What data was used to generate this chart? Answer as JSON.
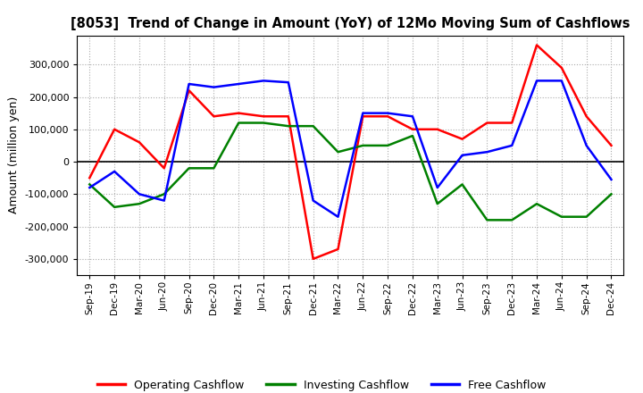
{
  "title": "[8053]  Trend of Change in Amount (YoY) of 12Mo Moving Sum of Cashflows",
  "ylabel": "Amount (million yen)",
  "ylim": [
    -350000,
    390000
  ],
  "yticks": [
    -300000,
    -200000,
    -100000,
    0,
    100000,
    200000,
    300000
  ],
  "legend_labels": [
    "Operating Cashflow",
    "Investing Cashflow",
    "Free Cashflow"
  ],
  "legend_colors": [
    "red",
    "green",
    "blue"
  ],
  "x_labels": [
    "Sep-19",
    "Dec-19",
    "Mar-20",
    "Jun-20",
    "Sep-20",
    "Dec-20",
    "Mar-21",
    "Jun-21",
    "Sep-21",
    "Dec-21",
    "Mar-22",
    "Jun-22",
    "Sep-22",
    "Dec-22",
    "Mar-23",
    "Jun-23",
    "Sep-23",
    "Dec-23",
    "Mar-24",
    "Jun-24",
    "Sep-24",
    "Dec-24"
  ],
  "operating": [
    -50000,
    100000,
    60000,
    -20000,
    220000,
    140000,
    150000,
    140000,
    140000,
    -300000,
    -270000,
    140000,
    140000,
    100000,
    100000,
    70000,
    120000,
    120000,
    360000,
    290000,
    140000,
    50000
  ],
  "investing": [
    -70000,
    -140000,
    -130000,
    -100000,
    -20000,
    -20000,
    120000,
    120000,
    110000,
    110000,
    30000,
    50000,
    50000,
    80000,
    -130000,
    -70000,
    -180000,
    -180000,
    -130000,
    -170000,
    -170000,
    -100000
  ],
  "free": [
    -80000,
    -30000,
    -100000,
    -120000,
    240000,
    230000,
    240000,
    250000,
    245000,
    -120000,
    -170000,
    150000,
    150000,
    140000,
    -80000,
    20000,
    30000,
    50000,
    250000,
    250000,
    50000,
    -55000
  ]
}
